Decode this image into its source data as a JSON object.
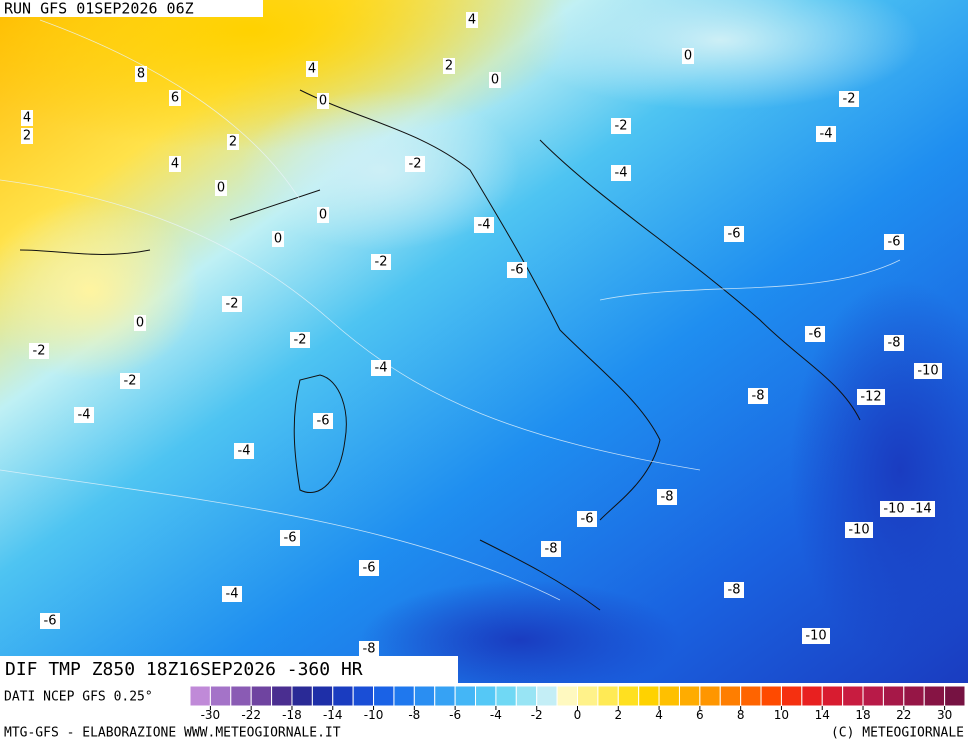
{
  "header": {
    "run": "RUN GFS 01SEP2026 06Z",
    "field": "DIF TMP Z850 18Z16SEP2026 -360 HR",
    "source": "DATI NCEP GFS 0.25°",
    "credit": "MTG-GFS - ELABORAZIONE WWW.METEOGIORNALE.IT",
    "copyright": "(C) METEOGIORNALE"
  },
  "contour_labels": [
    4,
    8,
    4,
    2,
    0,
    0,
    6,
    0,
    -2,
    4,
    2,
    -2,
    -4,
    2,
    -2,
    4,
    -4,
    0,
    0,
    -4,
    0,
    -6,
    -6,
    -2,
    -6,
    -2,
    0,
    -6,
    -8,
    -2,
    -2,
    -4,
    -10,
    -2,
    -8,
    -12,
    -4,
    -6,
    -4,
    -8,
    -10,
    -14,
    -6,
    -10,
    -6,
    -8,
    -6,
    -8,
    -4,
    -6,
    -10,
    -8
  ],
  "colorbar": {
    "colors": [
      "#c08ad8",
      "#a473c8",
      "#8a5bb4",
      "#6f44a0",
      "#4a2e90",
      "#2a2a96",
      "#1e2fa8",
      "#1a3cc0",
      "#1a4ed6",
      "#1a62e6",
      "#1f78ee",
      "#2a8ef2",
      "#36a2f4",
      "#44b6f6",
      "#55c8f6",
      "#70d8f4",
      "#98e4f4",
      "#c4eef6",
      "#fff9c0",
      "#fff28a",
      "#ffea55",
      "#ffe020",
      "#ffd200",
      "#ffc000",
      "#ffac00",
      "#ff9600",
      "#ff7e00",
      "#ff6400",
      "#ff4a00",
      "#f53010",
      "#e82020",
      "#d81c30",
      "#c81c40",
      "#b81a48",
      "#a61848",
      "#961646",
      "#861444",
      "#761242"
    ],
    "labels": [
      -30,
      -22,
      -18,
      -14,
      -10,
      -8,
      -6,
      -4,
      -2,
      0,
      2,
      4,
      6,
      8,
      10,
      14,
      18,
      22,
      30
    ]
  }
}
